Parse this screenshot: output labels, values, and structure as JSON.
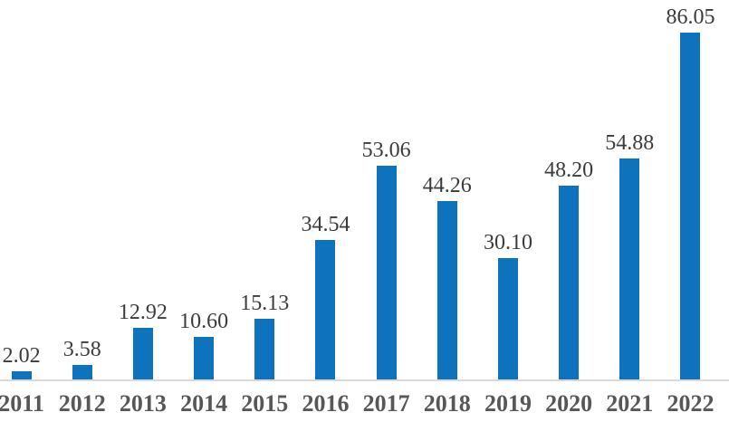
{
  "chart_data": {
    "type": "bar",
    "categories": [
      "2011",
      "2012",
      "2013",
      "2014",
      "2015",
      "2016",
      "2017",
      "2018",
      "2019",
      "2020",
      "2021",
      "2022"
    ],
    "values": [
      2.02,
      3.58,
      12.92,
      10.6,
      15.13,
      34.54,
      53.06,
      44.26,
      30.1,
      48.2,
      54.88,
      86.05
    ],
    "value_labels": [
      "2.02",
      "3.58",
      "12.92",
      "10.60",
      "15.13",
      "34.54",
      "53.06",
      "44.26",
      "30.10",
      "48.20",
      "54.88",
      "86.05"
    ],
    "title": "",
    "xlabel": "",
    "ylabel": "",
    "ylim": [
      0,
      94
    ],
    "grid": false,
    "legend": null,
    "data_labels": true,
    "bar_color": "#0e72bd",
    "axis_line_color": "#d9d9d9",
    "value_label_color": "#3b3b3b",
    "category_label_color": "#575757"
  }
}
